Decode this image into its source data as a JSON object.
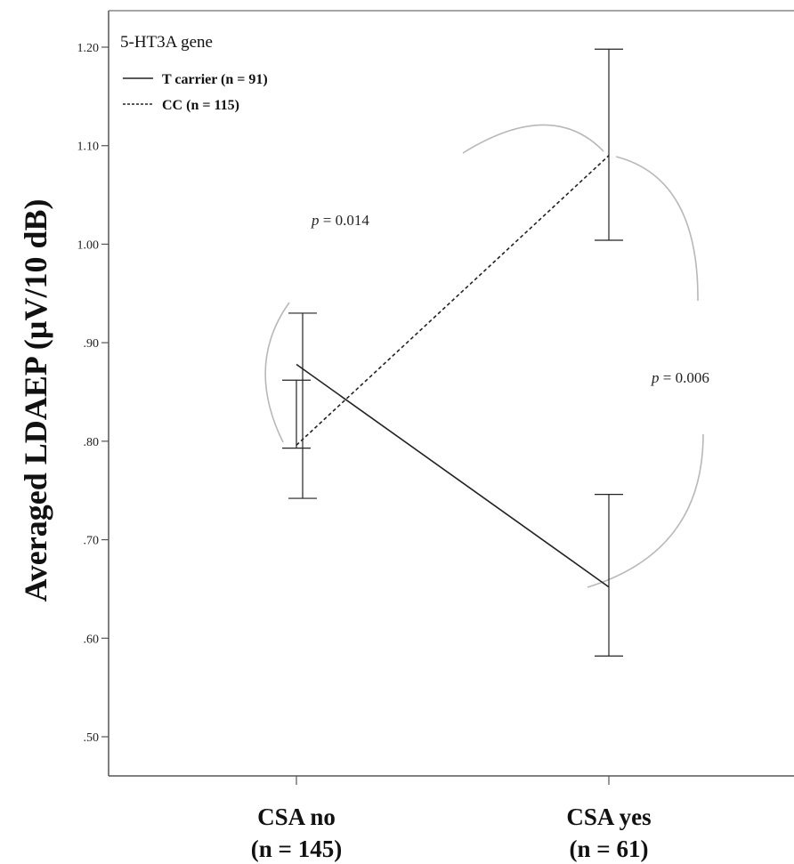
{
  "chart_data": {
    "type": "line",
    "ylabel": "Averaged  LDAEP (µV/10 dB)",
    "xlabel": "",
    "ylim": [
      0.45,
      1.26
    ],
    "yticks": [
      ".50",
      ".60",
      ".70",
      ".80",
      ".90",
      "1.00",
      "1.10",
      "1.20"
    ],
    "ytick_values": [
      0.5,
      0.6,
      0.7,
      0.8,
      0.9,
      1.0,
      1.1,
      1.2
    ],
    "categories": [
      {
        "line1": "CSA no",
        "line2": "(n = 145)"
      },
      {
        "line1": "CSA yes",
        "line2": "(n = 61)"
      }
    ],
    "legend": {
      "title": "5-HT3A gene",
      "placement": "top-left"
    },
    "series": [
      {
        "name": "T carrier (n = 91)",
        "style": "solid",
        "values": [
          0.878,
          0.652
        ],
        "error_low": [
          0.742,
          0.582
        ],
        "error_high": [
          0.93,
          0.746
        ]
      },
      {
        "name": "CC (n = 115)",
        "style": "dashed",
        "values": [
          0.796,
          1.09
        ],
        "error_low": [
          0.793,
          1.004
        ],
        "error_high": [
          0.862,
          1.198
        ]
      }
    ],
    "annotations": [
      {
        "p_symbol": "p",
        "text": " = 0.014",
        "between": "CSA no T carrier vs CC"
      },
      {
        "p_symbol": "p",
        "text": " = 0.006",
        "between": "CSA yes T carrier vs CC"
      }
    ],
    "grid": false,
    "colors": {
      "line": "#222222",
      "bracket": "#b8b8b8",
      "frame": "#555555"
    }
  }
}
